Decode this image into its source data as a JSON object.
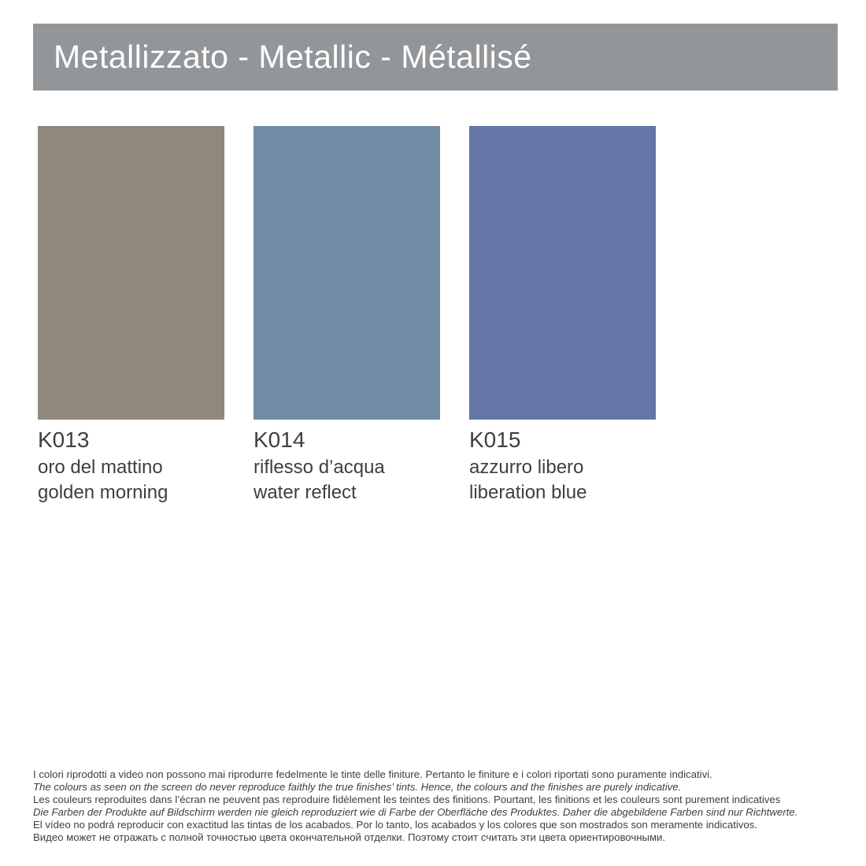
{
  "header": {
    "title": "Metallizzato - Metallic - Métallisé",
    "background_color": "#939699",
    "text_color": "#FFFFFF"
  },
  "swatches": [
    {
      "code": "K013",
      "name_italian": "oro del mattino",
      "name_english": "golden morning",
      "color": "#90877D"
    },
    {
      "code": "K014",
      "name_italian": "riflesso d’acqua",
      "name_english": "water reflect",
      "color": "#738CA5"
    },
    {
      "code": "K015",
      "name_italian": "azzurro libero",
      "name_english": "liberation blue",
      "color": "#6477A7"
    }
  ],
  "disclaimer": {
    "lines": [
      {
        "lang": "it",
        "text": "I colori riprodotti a video non possono mai riprodurre fedelmente le tinte delle finiture. Pertanto le finiture e i colori riportati sono puramente indicativi."
      },
      {
        "lang": "en",
        "text": "The colours as seen on the screen do never reproduce faithly the true finishes’ tints. Hence, the colours and the finishes are purely indicative."
      },
      {
        "lang": "fr",
        "text": "Les couleurs reproduites dans l’écran ne peuvent pas reproduire fidèlement les teintes des finitions. Pourtant, les finitions et les couleurs sont purement indicatives"
      },
      {
        "lang": "de",
        "text": "Die Farben der Produkte auf Bildschirm werden nie gleich reproduziert wie di Farbe der Oberfläche des Produktes. Daher die abgebildene Farben sind nur Richtwerte."
      },
      {
        "lang": "es",
        "text": "El vídeo no podrá reproducir con exactitud las tintas de los acabados. Por lo tanto, los acabados y los colores que son mostrados son meramente indicativos."
      },
      {
        "lang": "ru",
        "text": "Видео может не отражать с полной точностью цвета окончательной отделки. Поэтому стоит считать эти цвета ориентировочными."
      }
    ]
  }
}
